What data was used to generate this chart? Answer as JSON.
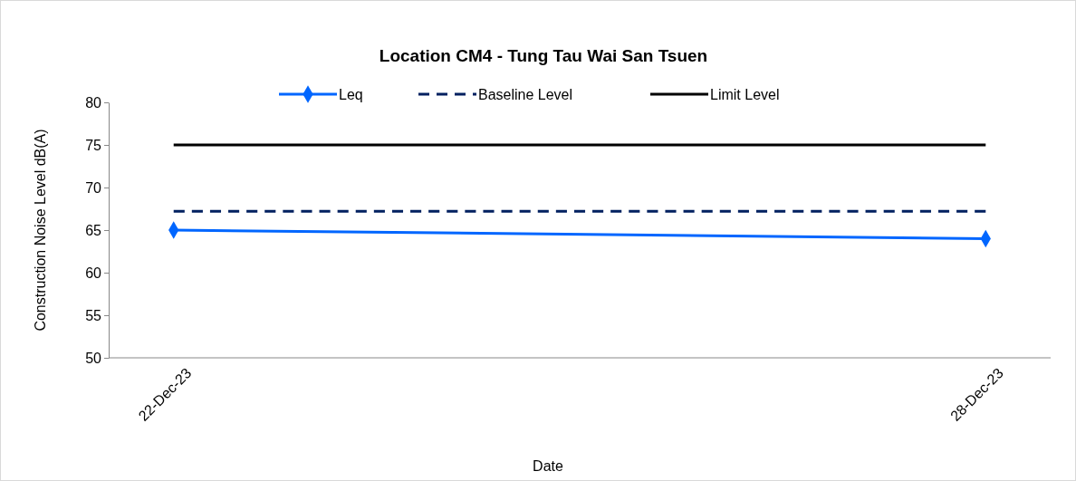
{
  "chart_data": {
    "type": "line",
    "title": "Location CM4 - Tung Tau Wai San Tsuen",
    "xlabel": "Date",
    "ylabel": "Construction Noise Level  dB(A)",
    "categories": [
      "22-Dec-23",
      "28-Dec-23"
    ],
    "series": [
      {
        "name": "Leq",
        "color": "#0066ff",
        "values": [
          65,
          64
        ],
        "marker": "diamond",
        "line_style": "solid"
      },
      {
        "name": "Baseline Level",
        "color": "#002060",
        "values": [
          67.2,
          67.2
        ],
        "marker": "none",
        "line_style": "dashed"
      },
      {
        "name": "Limit Level",
        "color": "#000000",
        "values": [
          75,
          75
        ],
        "marker": "none",
        "line_style": "solid"
      }
    ],
    "ylim": [
      50,
      80
    ],
    "yticks": [
      50,
      55,
      60,
      65,
      70,
      75,
      80
    ],
    "grid": false,
    "legend": "top"
  }
}
